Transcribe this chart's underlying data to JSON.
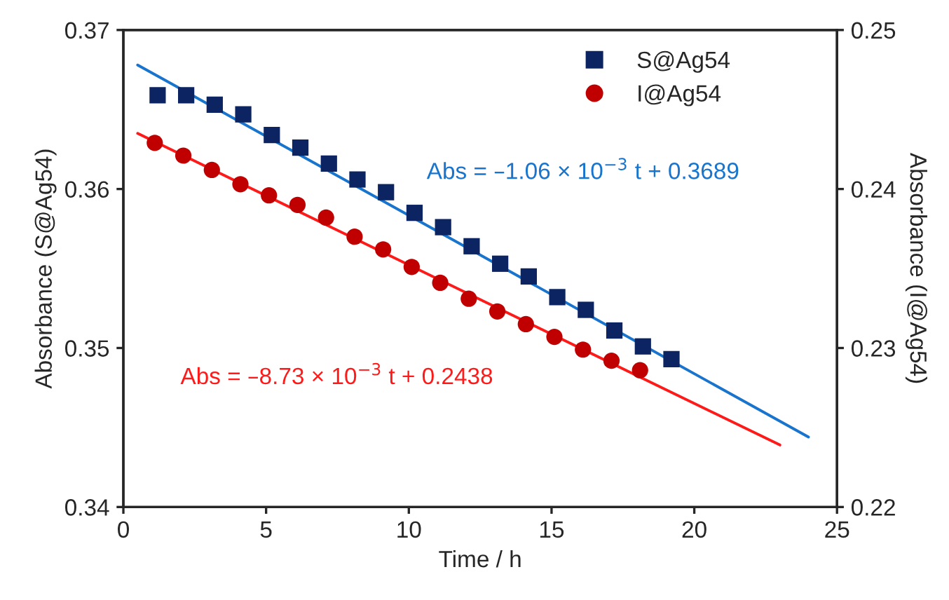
{
  "chart_data": {
    "type": "scatter",
    "xlabel": "Time / h",
    "ylabel": "Absorbance (S@Ag54)",
    "y2label": "Absorbance (I@Ag54)",
    "xlim": [
      0,
      25
    ],
    "xticks": [
      0,
      5,
      10,
      15,
      20,
      25
    ],
    "ylim": [
      0.34,
      0.37
    ],
    "yticks": [
      {
        "value": 0.34,
        "label": "0.34"
      },
      {
        "value": 0.35,
        "label": "0.35"
      },
      {
        "value": 0.36,
        "label": "0.36"
      },
      {
        "value": 0.37,
        "label": "0.37"
      }
    ],
    "y2lim": [
      0.22,
      0.25
    ],
    "y2ticks": [
      {
        "value": 0.22,
        "label": "0.22"
      },
      {
        "value": 0.23,
        "label": "0.23"
      },
      {
        "value": 0.24,
        "label": "0.24"
      },
      {
        "value": 0.25,
        "label": "0.25"
      }
    ],
    "grid": false,
    "legend": "top right",
    "series": [
      {
        "name": "S@Ag54",
        "marker": "square",
        "color": "#0c2461",
        "x": [
          1.2,
          2.2,
          3.2,
          4.2,
          5.2,
          6.2,
          7.2,
          8.2,
          9.2,
          10.2,
          11.2,
          12.2,
          13.2,
          14.2,
          15.2,
          16.2,
          17.2,
          18.2,
          19.2
        ],
        "values": [
          0.3659,
          0.3659,
          0.3653,
          0.3647,
          0.3634,
          0.3626,
          0.3616,
          0.3606,
          0.3598,
          0.3585,
          0.3576,
          0.3564,
          0.3553,
          0.3545,
          0.3532,
          0.3524,
          0.3511,
          0.3501,
          0.3493
        ]
      },
      {
        "name": "I@Ag54",
        "marker": "circle",
        "color": "#c00000",
        "axis": "y2",
        "x": [
          1.1,
          2.1,
          3.1,
          4.1,
          5.1,
          6.1,
          7.1,
          8.1,
          9.1,
          10.1,
          11.1,
          12.1,
          13.1,
          14.1,
          15.1,
          16.1,
          17.1,
          18.1
        ],
        "values": [
          0.2429,
          0.2421,
          0.2412,
          0.2403,
          0.2396,
          0.239,
          0.2382,
          0.237,
          0.2362,
          0.2351,
          0.2341,
          0.2331,
          0.2323,
          0.2315,
          0.2307,
          0.2299,
          0.2292,
          0.2286
        ]
      },
      {
        "type": "line",
        "color": "#1874cd",
        "x": [
          0.5,
          24
        ],
        "values": [
          0.3678,
          0.3444
        ]
      },
      {
        "type": "line",
        "color": "#ff1a1a",
        "axis": "y2",
        "x": [
          0.5,
          23
        ],
        "values": [
          0.2435,
          0.2239
        ]
      }
    ],
    "annotations": [
      "Abs = –1.06 × 10$^{−3}$ t + 0.3689",
      "Abs = –8.73 × 10$^{−3}$ t + 0.2438"
    ]
  }
}
